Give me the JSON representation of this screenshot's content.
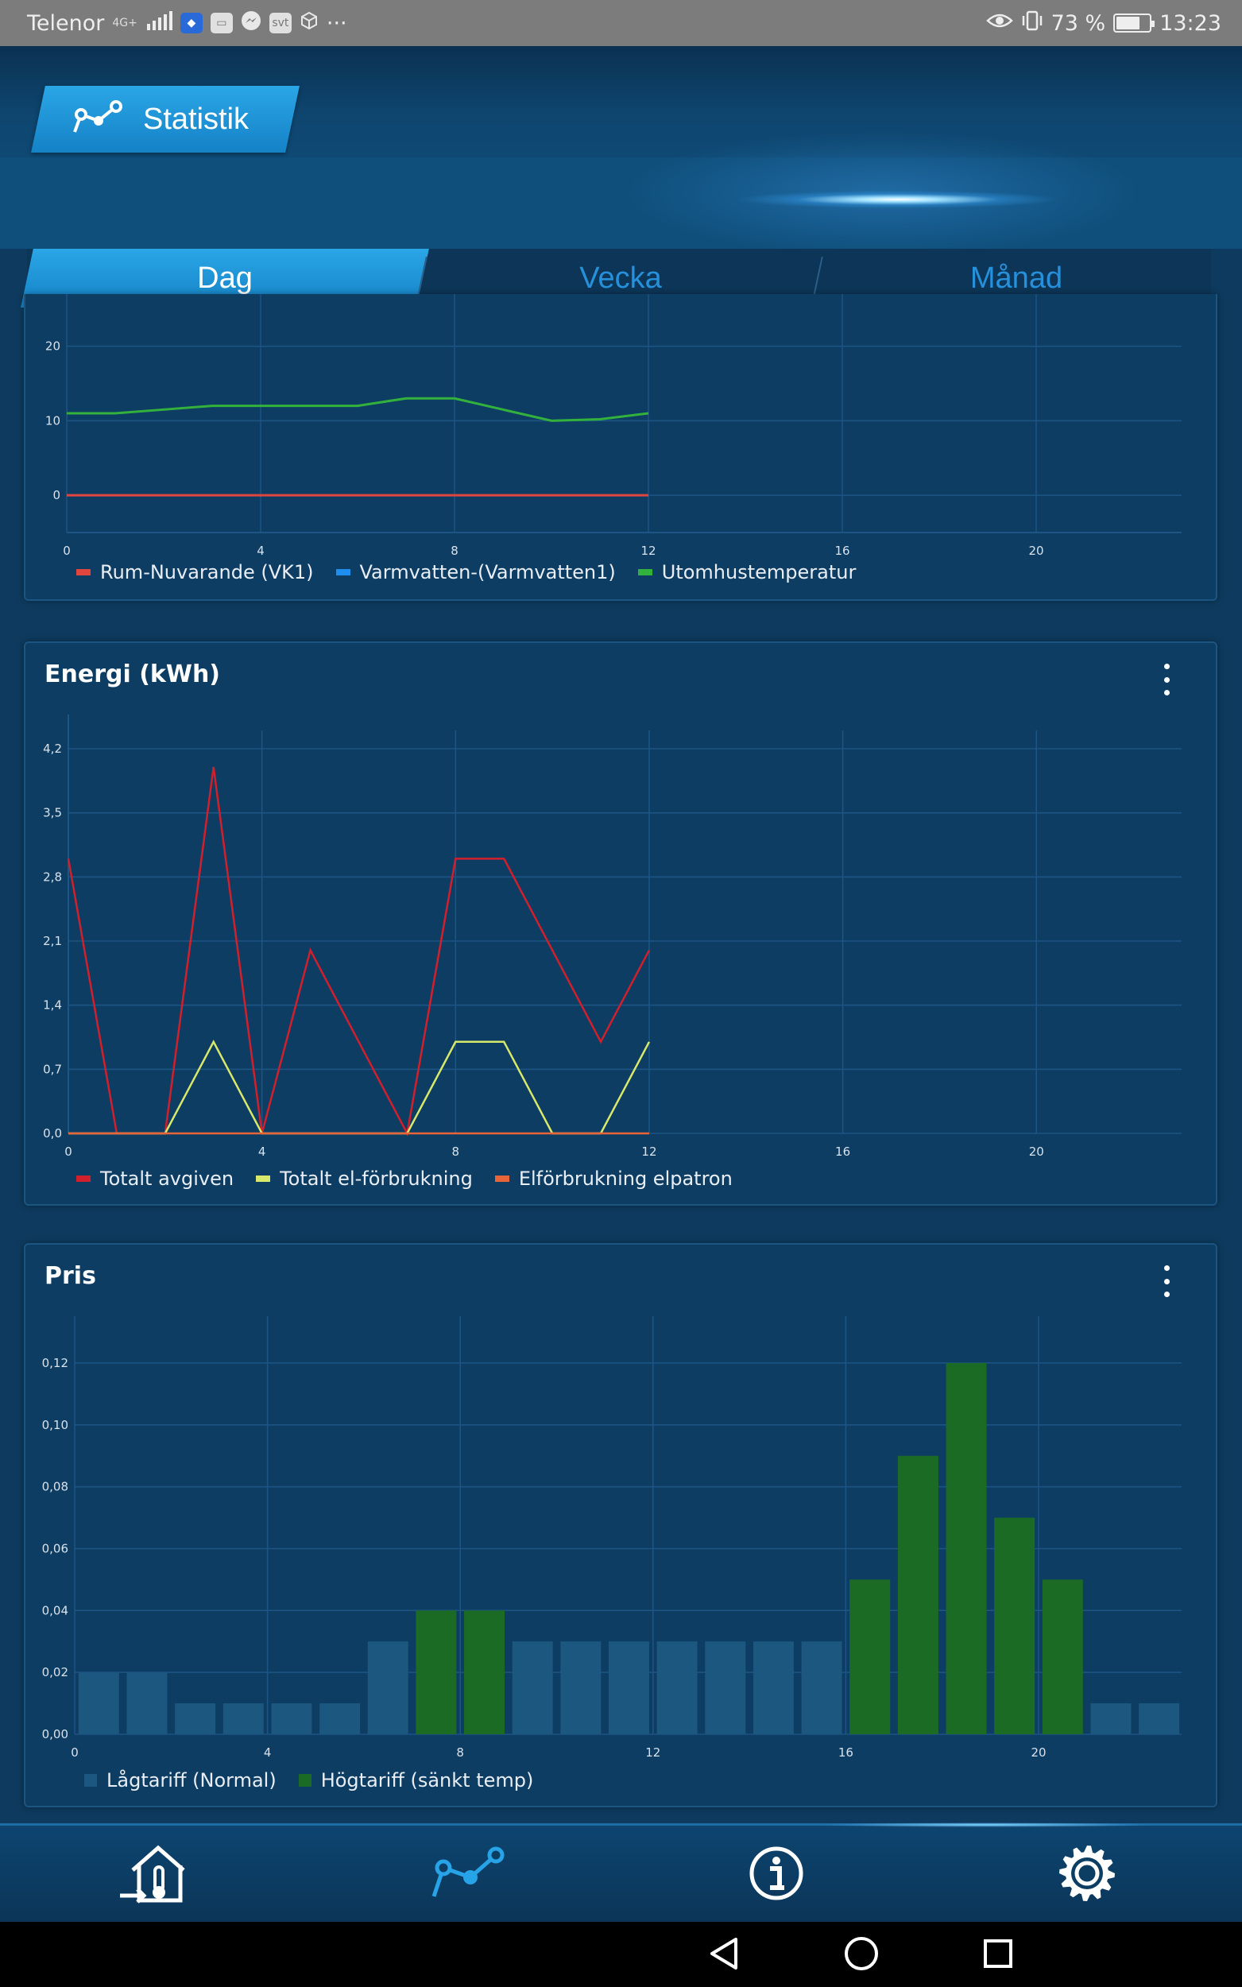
{
  "status_bar": {
    "carrier": "Telenor",
    "network": "4G+",
    "more": "···",
    "battery_percent": "73 %",
    "battery_level": 0.73,
    "time": "13:23"
  },
  "header": {
    "title": "Statistik"
  },
  "tabs": [
    {
      "label": "Dag",
      "active": true
    },
    {
      "label": "Vecka",
      "active": false
    },
    {
      "label": "Månad",
      "active": false
    }
  ],
  "colors": {
    "accent": "#1f98da",
    "card_bg": "#0e3d63",
    "grid": "#1d5584",
    "temp_room": "#e0453e",
    "temp_hotwater": "#1e8ef0",
    "temp_outdoor": "#33b13d",
    "energy_total_out": "#d11f2c",
    "energy_total_el": "#d7e86a",
    "energy_elpatron": "#e8653a",
    "price_low": "#1c5780",
    "price_high": "#1c6b25"
  },
  "chart_data": [
    {
      "type": "line",
      "title": "",
      "x_ticks": [
        0,
        4,
        8,
        12,
        16,
        20
      ],
      "y_ticks": [
        0,
        10,
        20
      ],
      "xlim": [
        0,
        23
      ],
      "ylim": [
        -5,
        27
      ],
      "grid": true,
      "legend_position": "bottom-left",
      "series": [
        {
          "name": "Rum-Nuvarande (VK1)",
          "x": [
            0,
            1,
            2,
            3,
            4,
            5,
            6,
            7,
            8,
            9,
            10,
            11,
            12
          ],
          "values": [
            0,
            0,
            0,
            0,
            0,
            0,
            0,
            0,
            0,
            0,
            0,
            0,
            0
          ]
        },
        {
          "name": "Varmvatten-(Varmvatten1)",
          "x": [],
          "values": []
        },
        {
          "name": "Utomhustemperatur",
          "x": [
            0,
            1,
            2,
            3,
            4,
            5,
            6,
            7,
            8,
            9,
            10,
            11,
            12
          ],
          "values": [
            11,
            11,
            11.5,
            12,
            12,
            12,
            12,
            13,
            13,
            11.5,
            10,
            10.2,
            11
          ]
        }
      ]
    },
    {
      "type": "line",
      "title": "Energi (kWh)",
      "x_ticks": [
        0,
        4,
        8,
        12,
        16,
        20
      ],
      "y_ticks": [
        "0,0",
        "0,7",
        "1,4",
        "2,1",
        "2,8",
        "3,5",
        "4,2"
      ],
      "xlim": [
        0,
        23
      ],
      "ylim": [
        0,
        4.4
      ],
      "grid": true,
      "legend_position": "bottom-left",
      "series": [
        {
          "name": "Totalt avgiven",
          "x": [
            0,
            1,
            2,
            3,
            4,
            5,
            6,
            7,
            8,
            9,
            10,
            11,
            12
          ],
          "values": [
            3,
            0,
            0,
            4,
            0,
            2,
            1,
            0,
            3,
            3,
            2,
            1,
            2
          ]
        },
        {
          "name": "Totalt el-förbrukning",
          "x": [
            0,
            1,
            2,
            3,
            4,
            5,
            6,
            7,
            8,
            9,
            10,
            11,
            12
          ],
          "values": [
            0,
            0,
            0,
            1,
            0,
            0,
            0,
            0,
            1,
            1,
            0,
            0,
            1
          ]
        },
        {
          "name": "Elförbrukning elpatron",
          "x": [
            0,
            1,
            2,
            3,
            4,
            5,
            6,
            7,
            8,
            9,
            10,
            11,
            12
          ],
          "values": [
            0,
            0,
            0,
            0,
            0,
            0,
            0,
            0,
            0,
            0,
            0,
            0,
            0
          ]
        }
      ]
    },
    {
      "type": "bar",
      "title": "Pris",
      "x_ticks": [
        0,
        4,
        8,
        12,
        16,
        20
      ],
      "y_ticks": [
        "0,00",
        "0,02",
        "0,04",
        "0,06",
        "0,08",
        "0,10",
        "0,12"
      ],
      "xlim": [
        0,
        23
      ],
      "ylim": [
        0,
        0.13
      ],
      "grid": true,
      "legend_position": "bottom-left",
      "hours": [
        0,
        1,
        2,
        3,
        4,
        5,
        6,
        7,
        8,
        9,
        10,
        11,
        12,
        13,
        14,
        15,
        16,
        17,
        18,
        19,
        20,
        21,
        22
      ],
      "values": [
        0.02,
        0.02,
        0.01,
        0.01,
        0.01,
        0.01,
        0.03,
        0.04,
        0.04,
        0.03,
        0.03,
        0.03,
        0.03,
        0.03,
        0.03,
        0.03,
        0.05,
        0.09,
        0.12,
        0.07,
        0.05,
        0.01,
        0.01
      ],
      "tariff": [
        "low",
        "low",
        "low",
        "low",
        "low",
        "low",
        "low",
        "high",
        "high",
        "low",
        "low",
        "low",
        "low",
        "low",
        "low",
        "low",
        "high",
        "high",
        "high",
        "high",
        "high",
        "low",
        "low"
      ],
      "series": [
        {
          "name": "Lågtariff (Normal)"
        },
        {
          "name": "Högtariff (sänkt temp)"
        }
      ]
    }
  ],
  "nav": {
    "items": [
      {
        "icon": "house-thermometer-icon"
      },
      {
        "icon": "statistics-icon",
        "active": true
      },
      {
        "icon": "info-icon"
      },
      {
        "icon": "gear-icon"
      }
    ]
  },
  "android_nav": {
    "items": [
      {
        "icon": "back-icon"
      },
      {
        "icon": "home-icon"
      },
      {
        "icon": "recents-icon"
      }
    ]
  }
}
